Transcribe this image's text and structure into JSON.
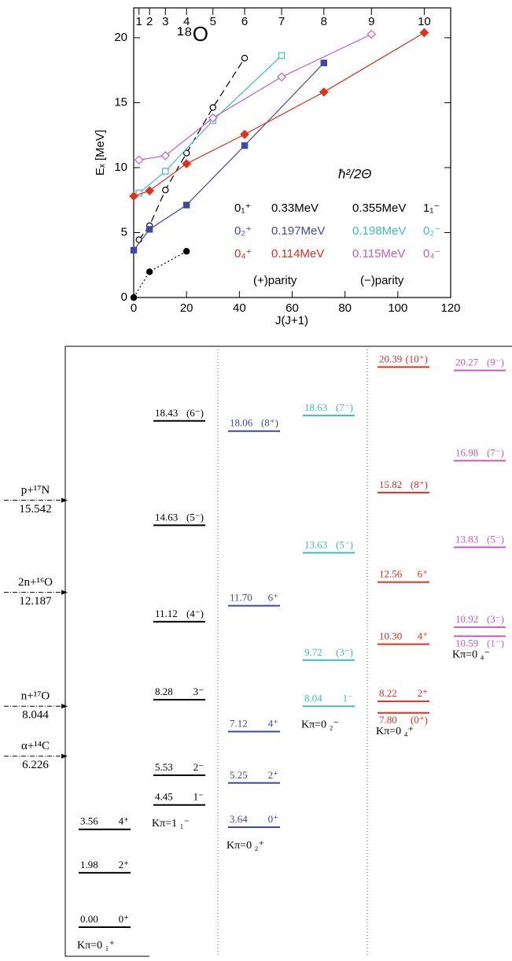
{
  "chart_data": {
    "type": "scatter",
    "title": "¹⁸O",
    "xlabel": "J(J+1)",
    "ylabel": "Eₓ [MeV]",
    "xlim": [
      0,
      120
    ],
    "ylim": [
      0,
      22.3
    ],
    "xticks": [
      0,
      20,
      40,
      60,
      80,
      100,
      120
    ],
    "yticks": [
      0,
      5,
      10,
      15,
      20
    ],
    "top_ticks": [
      {
        "value": 2,
        "label": "1"
      },
      {
        "value": 6,
        "label": "2"
      },
      {
        "value": 12,
        "label": "3"
      },
      {
        "value": 20,
        "label": "4"
      },
      {
        "value": 30,
        "label": "5"
      },
      {
        "value": 42,
        "label": "6"
      },
      {
        "value": 56,
        "label": "7"
      },
      {
        "value": 72,
        "label": "8"
      },
      {
        "value": 90,
        "label": "9"
      },
      {
        "value": 110,
        "label": "10"
      }
    ],
    "legend_title": "ħ²/2Θ",
    "annotations": [
      "(+)parity",
      "(−)parity"
    ],
    "series": [
      {
        "name": "0₁⁺",
        "slope": "0.33MeV",
        "color": "#000000",
        "marker": "circle",
        "filled": true,
        "line": "dotted",
        "x": [
          0,
          6,
          20
        ],
        "values": [
          0,
          1.98,
          3.56
        ]
      },
      {
        "name": "1₁⁻",
        "slope": "0.355MeV",
        "color": "#000000",
        "marker": "circle",
        "filled": false,
        "line": "dashed",
        "x": [
          2,
          6,
          12,
          20,
          30,
          42
        ],
        "values": [
          4.45,
          5.53,
          8.28,
          11.12,
          14.63,
          18.43
        ]
      },
      {
        "name": "0₂⁺",
        "slope": "0.197MeV",
        "color": "#3f48a8",
        "marker": "square",
        "filled": true,
        "line": "solid",
        "x": [
          0,
          6,
          20,
          42,
          72
        ],
        "values": [
          3.64,
          5.25,
          7.12,
          11.7,
          18.06
        ]
      },
      {
        "name": "0₂⁻",
        "slope": "0.198MeV",
        "color": "#3cbcc0",
        "marker": "square",
        "filled": false,
        "line": "solid",
        "x": [
          2,
          12,
          30,
          56
        ],
        "values": [
          8.04,
          9.72,
          13.63,
          18.63
        ]
      },
      {
        "name": "0₄⁺",
        "slope": "0.114MeV",
        "color": "#e0301e",
        "marker": "diamond",
        "filled": true,
        "line": "solid",
        "x": [
          0,
          6,
          20,
          42,
          72,
          110
        ],
        "values": [
          7.8,
          8.22,
          10.3,
          12.56,
          15.82,
          20.39
        ]
      },
      {
        "name": "0₄⁻",
        "slope": "0.115MeV",
        "color": "#c45cc0",
        "marker": "diamond",
        "filled": false,
        "line": "solid",
        "x": [
          2,
          12,
          30,
          56,
          90
        ],
        "values": [
          10.59,
          10.92,
          13.83,
          16.98,
          20.27
        ]
      }
    ]
  },
  "level_scheme": {
    "thresholds": [
      {
        "name": "p+¹⁷N",
        "energy": 15.542
      },
      {
        "name": "2n+¹⁶O",
        "energy": 12.187
      },
      {
        "name": "n+¹⁷O",
        "energy": 8.044
      },
      {
        "name": "α+¹⁴C",
        "energy": 6.226
      }
    ],
    "bands": [
      {
        "label": "Kπ=0 ₁⁺",
        "color": "#000000",
        "energies": [
          0,
          1.98,
          3.56
        ],
        "energy_labels": [
          "0.00",
          "1.98",
          "3.56"
        ],
        "spins": [
          "0⁺",
          "2⁺",
          "4⁺"
        ]
      },
      {
        "label": "Kπ=1 ₁⁻",
        "color": "#000000",
        "energies": [
          4.45,
          5.53,
          8.28,
          11.12,
          14.63,
          18.43
        ],
        "energy_labels": [
          "4.45",
          "5.53",
          "8.28",
          "11.12",
          "14.63",
          "18.43"
        ],
        "spins": [
          "1⁻",
          "2⁻",
          "3⁻",
          "(4⁻)",
          "(5⁻)",
          "(6⁻)"
        ]
      },
      {
        "label": "Kπ=0 ₂⁺",
        "color": "#3f48a8",
        "energies": [
          3.64,
          5.25,
          7.12,
          11.7,
          18.06
        ],
        "energy_labels": [
          "3.64",
          "5.25",
          "7.12",
          "11.70",
          "18.06"
        ],
        "spins": [
          "0⁺",
          "2⁺",
          "4⁺",
          "6⁺",
          "(8⁺)"
        ]
      },
      {
        "label": "Kπ=0 ₂⁻",
        "color": "#3cbcc0",
        "energies": [
          8.04,
          9.72,
          13.63,
          18.63
        ],
        "energy_labels": [
          "8.04",
          "9.72",
          "13.63",
          "18.63"
        ],
        "spins": [
          "1⁻",
          "(3⁻)",
          "(5⁻)",
          "(7⁻)"
        ]
      },
      {
        "label": "Kπ=0 ₄⁺",
        "color": "#e0301e",
        "energies": [
          7.8,
          8.22,
          10.3,
          12.56,
          15.82,
          20.39
        ],
        "energy_labels": [
          "7.80",
          "8.22",
          "10.30",
          "12.56",
          "15.82",
          "20.39"
        ],
        "spins": [
          "(0⁺)",
          "2⁺",
          "4⁺",
          "6⁺",
          "(8⁺)",
          "(10⁺)"
        ]
      },
      {
        "label": "Kπ=0 ₄⁻",
        "color": "#c45cc0",
        "energies": [
          10.59,
          10.92,
          13.83,
          16.98,
          20.27
        ],
        "energy_labels": [
          "10.59",
          "10.92",
          "13.83",
          "16.98",
          "20.27"
        ],
        "spins": [
          "(1⁻)",
          "(3⁻)",
          "(5⁻)",
          "(7⁻)",
          "(9⁻)"
        ]
      }
    ]
  }
}
